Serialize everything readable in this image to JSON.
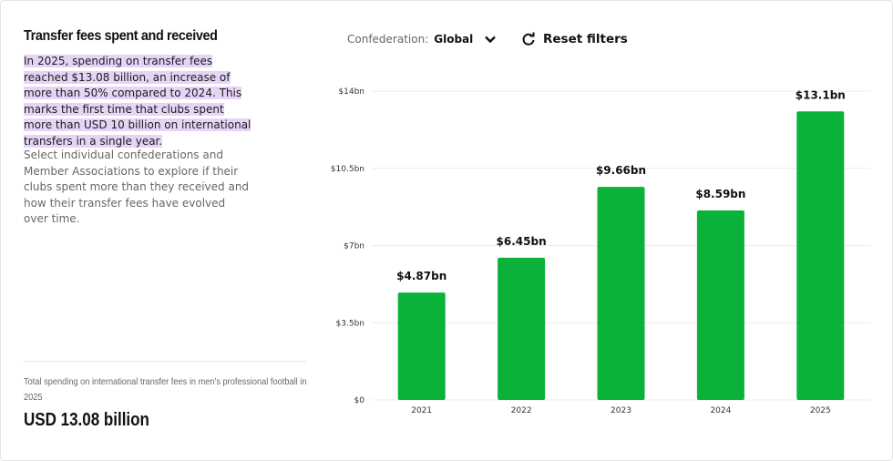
{
  "title": "Transfer fees spent and received",
  "highlight_text": "In 2025, spending on transfer fees reached $13.08 billion, an increase of more than 50% compared to 2024. This marks the first time that clubs spent more than USD 10 billion on international transfers in a single year.",
  "description": "Select individual confederations and Member Associations to explore if their clubs spent more than they received and how their transfer fees have evolved over time.",
  "note": "Total spending on international transfer fees in men's professional football in 2025",
  "total_value": "USD 13.08 billion",
  "filters": {
    "confederation_label": "Confederation:",
    "confederation_value": "Global",
    "reset_label": "Reset filters"
  },
  "colors": {
    "bar": "#0bb23a",
    "highlight": "#e6d4f7"
  },
  "chart_data": {
    "type": "bar",
    "categories": [
      "2021",
      "2022",
      "2023",
      "2024",
      "2025"
    ],
    "values": [
      4.87,
      6.45,
      9.66,
      8.59,
      13.08
    ],
    "data_labels": [
      "$4.87bn",
      "$6.45bn",
      "$9.66bn",
      "$8.59bn",
      "$13.1bn"
    ],
    "y_ticks": [
      0,
      3.5,
      7,
      10.5,
      14
    ],
    "y_tick_labels": [
      "$0",
      "$3.5bn",
      "$7bn",
      "$10.5bn",
      "$14bn"
    ],
    "ylim": [
      0,
      14
    ],
    "unit": "USD billion",
    "grid": true,
    "xlabel": "",
    "ylabel": ""
  }
}
